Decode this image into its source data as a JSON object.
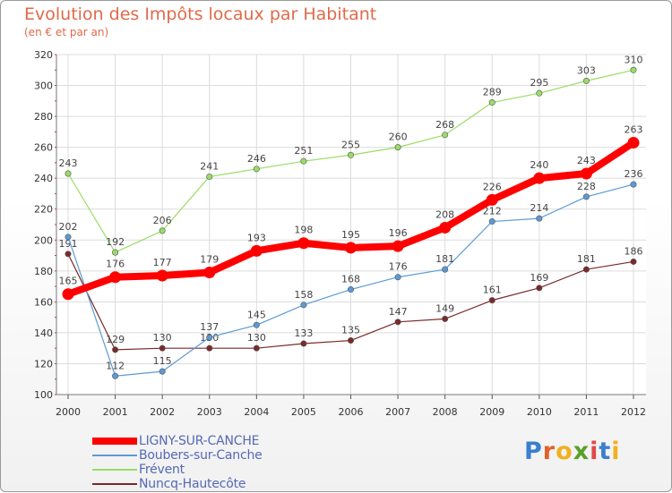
{
  "header": {
    "title": "Evolution des Impôts locaux par Habitant",
    "subtitle": "(en € et par an)"
  },
  "logo": {
    "letters": [
      "P",
      "r",
      "o",
      "x",
      "i",
      "t",
      "i"
    ],
    "colors": [
      "#3a7fd0",
      "#e0622a",
      "#f0b020",
      "#5aa028",
      "#e04848",
      "#3a7fd0",
      "#f0b020"
    ]
  },
  "chart_data": {
    "type": "line",
    "x": [
      "2000",
      "2001",
      "2002",
      "2003",
      "2004",
      "2005",
      "2006",
      "2007",
      "2008",
      "2009",
      "2010",
      "2011",
      "2012"
    ],
    "ylim": [
      100,
      320
    ],
    "yticks": [
      100,
      120,
      140,
      160,
      180,
      200,
      220,
      240,
      260,
      280,
      300,
      320
    ],
    "grid": true,
    "legend_position": "bottom-left",
    "series": [
      {
        "name": "LIGNY-SUR-CANCHE",
        "color": "#ff0000",
        "values": [
          165,
          176,
          177,
          179,
          193,
          198,
          195,
          196,
          208,
          226,
          240,
          243,
          263
        ]
      },
      {
        "name": "Boubers-sur-Canche",
        "color": "#5b9bd5",
        "values": [
          202,
          112,
          115,
          137,
          145,
          158,
          168,
          176,
          181,
          212,
          214,
          228,
          236
        ]
      },
      {
        "name": "Frévent",
        "color": "#99dd66",
        "values": [
          243,
          192,
          206,
          241,
          246,
          251,
          255,
          260,
          268,
          289,
          295,
          303,
          310
        ]
      },
      {
        "name": "Nuncq-Hautecôte",
        "color": "#7a2a2a",
        "values": [
          191,
          129,
          130,
          130,
          130,
          133,
          135,
          147,
          149,
          161,
          169,
          181,
          186
        ]
      }
    ]
  }
}
